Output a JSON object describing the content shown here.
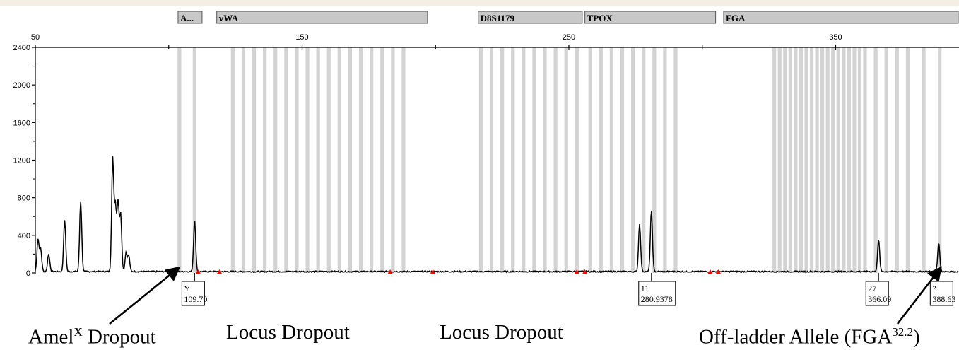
{
  "chart_data": {
    "type": "line",
    "title": "",
    "xlabel": "",
    "ylabel": "",
    "xlim": [
      50,
      415
    ],
    "ylim": [
      0,
      2400
    ],
    "x_ticks": [
      50,
      150,
      250,
      350
    ],
    "y_ticks": [
      0,
      400,
      800,
      1200,
      1600,
      2000,
      2400
    ],
    "grid": false,
    "loci": [
      {
        "name": "A...",
        "start": 103.5,
        "end": 112.5
      },
      {
        "name": "vWA",
        "start": 118,
        "end": 197
      },
      {
        "name": "D8S1179",
        "start": 216,
        "end": 255
      },
      {
        "name": "TPOX",
        "start": 256,
        "end": 305
      },
      {
        "name": "FGA",
        "start": 308,
        "end": 415
      }
    ],
    "bins": [
      104,
      109.7,
      124,
      128,
      132,
      136,
      140,
      144,
      148,
      152,
      156,
      160,
      164,
      168,
      172,
      176,
      180,
      184,
      188,
      217,
      221,
      225,
      229,
      233,
      237,
      241,
      245,
      249,
      253,
      258,
      262,
      266,
      270,
      274,
      278,
      282,
      286,
      290,
      327,
      329,
      331,
      333,
      335,
      337,
      339,
      341,
      343,
      345,
      347,
      349,
      351,
      353,
      355,
      357,
      359,
      361,
      365,
      369,
      373,
      377,
      383,
      389
    ],
    "baseline": 15,
    "peaks": [
      {
        "x": 51,
        "y": 340
      },
      {
        "x": 52,
        "y": 240
      },
      {
        "x": 55,
        "y": 190
      },
      {
        "x": 61,
        "y": 550
      },
      {
        "x": 67,
        "y": 750
      },
      {
        "x": 79,
        "y": 1200
      },
      {
        "x": 80,
        "y": 680
      },
      {
        "x": 81,
        "y": 730
      },
      {
        "x": 82,
        "y": 600
      },
      {
        "x": 84,
        "y": 200
      },
      {
        "x": 85,
        "y": 170
      },
      {
        "x": 109.7,
        "y": 550
      },
      {
        "x": 276.5,
        "y": 510
      },
      {
        "x": 280.93,
        "y": 650
      },
      {
        "x": 366.09,
        "y": 340
      },
      {
        "x": 388.63,
        "y": 310
      }
    ],
    "markers_x": [
      111,
      119,
      183,
      199,
      253,
      256,
      303,
      306
    ],
    "allele_labels": [
      {
        "x": 109.7,
        "allele": "Y",
        "size": "109.70"
      },
      {
        "x": 280.93,
        "allele": "11",
        "size": "280.9378"
      },
      {
        "x": 366.09,
        "allele": "27",
        "size": "366.09"
      },
      {
        "x": 388.63,
        "allele": "?",
        "size": "388.63"
      }
    ],
    "annotations": [
      {
        "text": "Amel",
        "sup": "X",
        "tail": " Dropout",
        "arrow_to": 104
      },
      {
        "text": "Locus Dropout",
        "sup": "",
        "tail": ""
      },
      {
        "text": "Locus Dropout",
        "sup": "",
        "tail": ""
      },
      {
        "text": "Off-ladder Allele (FGA",
        "sup": "32.2",
        "tail": ")",
        "arrow_to": 389.5
      }
    ]
  },
  "colors": {
    "trace": "#000000",
    "bin": "#d3d3d3",
    "locus_box": "#c8c8c8",
    "marker": "#ff0000",
    "label_box_border": "#000000"
  }
}
